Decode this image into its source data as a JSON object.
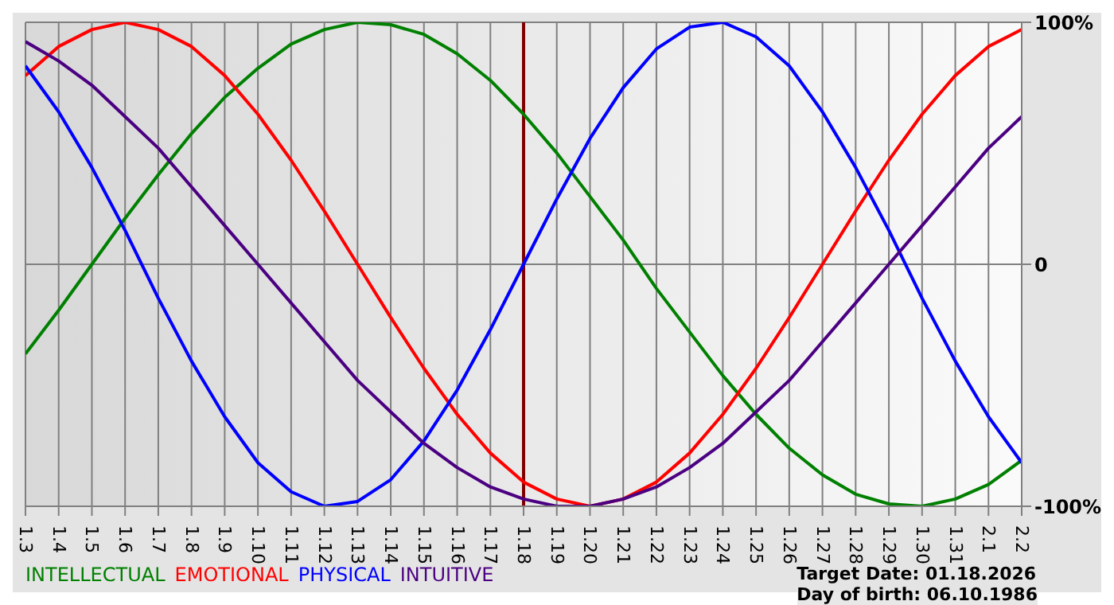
{
  "chart_data": {
    "type": "line",
    "categories": [
      "1.3",
      "1.4",
      "1.5",
      "1.6",
      "1.7",
      "1.8",
      "1.9",
      "1.10",
      "1.11",
      "1.12",
      "1.13",
      "1.14",
      "1.15",
      "1.16",
      "1.17",
      "1.18",
      "1.19",
      "1.20",
      "1.21",
      "1.22",
      "1.23",
      "1.24",
      "1.25",
      "1.26",
      "1.27",
      "1.28",
      "1.29",
      "1.30",
      "1.31",
      "2.1",
      "2.2"
    ],
    "series": [
      {
        "name": "INTELLECTUAL",
        "color": "#008000",
        "values": [
          -37,
          -19,
          0,
          19,
          37,
          54,
          69,
          81,
          91,
          97,
          100,
          99,
          95,
          87,
          76,
          62,
          46,
          28,
          10,
          -10,
          -28,
          -46,
          -62,
          -76,
          -87,
          -95,
          -99,
          -100,
          -97,
          -91,
          -81
        ]
      },
      {
        "name": "EMOTIONAL",
        "color": "#ff0000",
        "values": [
          78,
          90,
          97,
          100,
          97,
          90,
          78,
          62,
          43,
          22,
          0,
          -22,
          -43,
          -62,
          -78,
          -90,
          -97,
          -100,
          -97,
          -90,
          -78,
          -62,
          -43,
          -22,
          0,
          22,
          43,
          62,
          78,
          90,
          97
        ]
      },
      {
        "name": "PHYSICAL",
        "color": "#0000ff",
        "values": [
          82,
          63,
          40,
          14,
          -14,
          -40,
          -63,
          -82,
          -94,
          -100,
          -98,
          -89,
          -73,
          -52,
          -27,
          0,
          27,
          52,
          73,
          89,
          98,
          100,
          94,
          82,
          63,
          40,
          14,
          -14,
          -40,
          -63,
          -82
        ]
      },
      {
        "name": "INTUITIVE",
        "color": "#4b0082",
        "values": [
          92,
          84,
          74,
          61,
          48,
          32,
          16,
          0,
          -16,
          -32,
          -48,
          -61,
          -74,
          -84,
          -92,
          -97,
          -100,
          -100,
          -97,
          -92,
          -84,
          -74,
          -61,
          -48,
          -32,
          -16,
          0,
          16,
          32,
          48,
          61
        ]
      }
    ],
    "ylim": [
      -100,
      100
    ],
    "yticks": [
      {
        "value": 100,
        "label": "100%"
      },
      0,
      {
        "value": -100,
        "label": "-100%"
      }
    ],
    "grid": true,
    "legend": "bottom",
    "marker": "none",
    "line_style": "solid",
    "ref_lines": [
      {
        "axis": "x",
        "value": "1.18",
        "color": "#800000"
      }
    ],
    "annotations": [
      "Target Date: 01.18.2026",
      "Day of birth: 06.10.1986"
    ]
  }
}
